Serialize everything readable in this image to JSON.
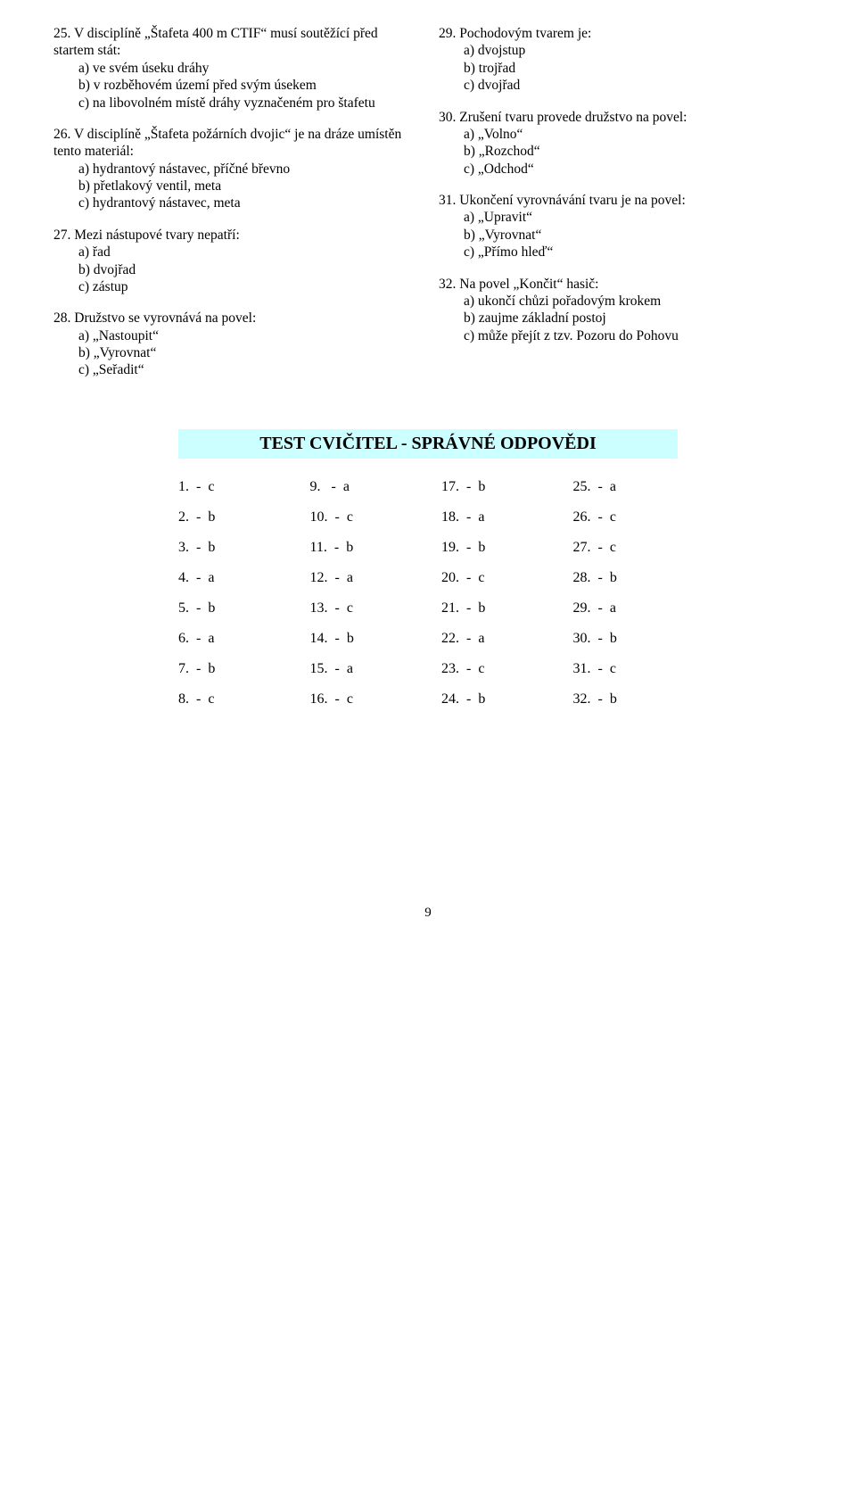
{
  "left": {
    "q25": {
      "text": "25.  V disciplíně „Štafeta 400 m CTIF“ musí soutěžící před startem stát:",
      "a": "a)  ve svém úseku dráhy",
      "b": "b)  v rozběhovém území před svým úsekem",
      "c": "c)  na libovolném místě dráhy vyznačeném pro štafetu"
    },
    "q26": {
      "text": "26.  V disciplíně „Štafeta požárních dvojic“ je na dráze umístěn tento materiál:",
      "a": "a)  hydrantový nástavec, příčné břevno",
      "b": "b)  přetlakový ventil, meta",
      "c": "c)  hydrantový nástavec, meta"
    },
    "q27": {
      "text": "27.  Mezi nástupové tvary nepatří:",
      "a": "a)  řad",
      "b": "b)  dvojřad",
      "c": "c)  zástup"
    },
    "q28": {
      "text": "28.  Družstvo se vyrovnává na povel:",
      "a": "a)  „Nastoupit“",
      "b": "b)  „Vyrovnat“",
      "c": "c)  „Seřadit“"
    }
  },
  "right": {
    "q29": {
      "text": "29.  Pochodovým tvarem je:",
      "a": "a)  dvojstup",
      "b": "b)  trojřad",
      "c": "c)  dvojřad"
    },
    "q30": {
      "text": "30.  Zrušení tvaru provede družstvo na povel:",
      "a": "a)  „Volno“",
      "b": "b)  „Rozchod“",
      "c": "c)  „Odchod“"
    },
    "q31": {
      "text": "31.  Ukončení vyrovnávání tvaru je na povel:",
      "a": "a)  „Upravit“",
      "b": "b)  „Vyrovnat“",
      "c": "c)  „Přímo hleď“"
    },
    "q32": {
      "text": "32.  Na povel „Končit“ hasič:",
      "a": "a)  ukončí chůzi pořadovým krokem",
      "b": "b)  zaujme základní postoj",
      "c": "c)  může přejít z tzv. Pozoru do Pohovu"
    }
  },
  "answers": {
    "title": "TEST CVIČITEL - SPRÁVNÉ ODPOVĚDI",
    "rows": [
      [
        "1.  -  c",
        "9.   -  a",
        "17.  -  b",
        "25.  -  a"
      ],
      [
        "2.  -  b",
        "10.  -  c",
        "18.  -  a",
        "26.  -  c"
      ],
      [
        "3.  -  b",
        "11.  -  b",
        "19.  -  b",
        "27.  -  c"
      ],
      [
        "4.  -  a",
        "12.  -  a",
        "20.  -  c",
        "28.  -  b"
      ],
      [
        "5.  -  b",
        "13.  -  c",
        "21.  -  b",
        "29.  -  a"
      ],
      [
        "6.  -  a",
        "14.  -  b",
        "22.  -  a",
        "30.  -  b"
      ],
      [
        "7.  -  b",
        "15.  -  a",
        "23.  -  c",
        "31.  -  c"
      ],
      [
        "8.  -  c",
        "16.  -  c",
        "24.  -  b",
        "32.  -  b"
      ]
    ]
  },
  "pagenum": "9"
}
